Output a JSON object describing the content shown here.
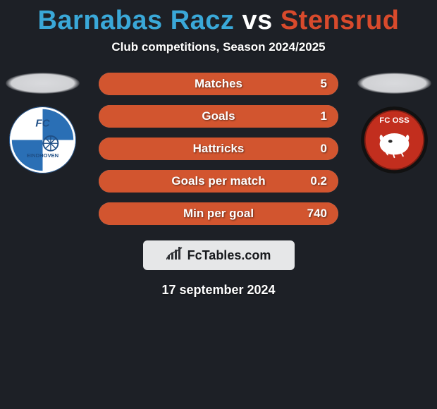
{
  "title": {
    "player1": "Barnabas Racz",
    "vs": "vs",
    "player2": "Stensrud",
    "player1_color": "#3aa8d8",
    "vs_color": "#ffffff",
    "player2_color": "#d84a2c"
  },
  "subtitle": "Club competitions, Season 2024/2025",
  "colors": {
    "background": "#1d2026",
    "bar_track": "#58b0d6",
    "bar_fill": "#d2552f",
    "brand_box_bg": "#e6e7e8",
    "brand_text": "#17191c"
  },
  "stats": [
    {
      "label": "Matches",
      "value": "5",
      "fill_percent": 100
    },
    {
      "label": "Goals",
      "value": "1",
      "fill_percent": 100
    },
    {
      "label": "Hattricks",
      "value": "0",
      "fill_percent": 100
    },
    {
      "label": "Goals per match",
      "value": "0.2",
      "fill_percent": 100
    },
    {
      "label": "Min per goal",
      "value": "740",
      "fill_percent": 100
    }
  ],
  "clubs": {
    "left": {
      "name": "FC Eindhoven",
      "badge_bg": "#ffffff",
      "badge_stripe": "#2a6fb5",
      "badge_text": "FC",
      "badge_sub": "EINDHOVEN"
    },
    "right": {
      "name": "FC Oss",
      "badge_bg": "#c22e1e",
      "badge_ring": "#111111",
      "badge_text": "FC OSS",
      "badge_accent": "#ffffff"
    }
  },
  "brand": {
    "text": "FcTables.com",
    "icon_color": "#303236"
  },
  "date": "17 september 2024"
}
